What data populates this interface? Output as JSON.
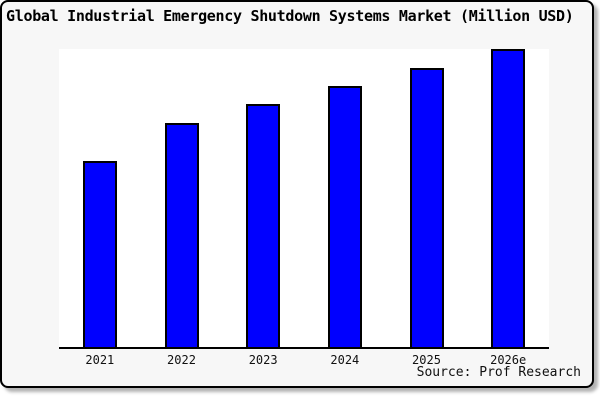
{
  "frame": {
    "background": "#f7f7f7",
    "border_color": "#000000"
  },
  "chart_data": {
    "type": "bar",
    "title": "Global Industrial Emergency Shutdown Systems Market (Million USD)",
    "categories": [
      "2021",
      "2022",
      "2023",
      "2024",
      "2025",
      "2026e"
    ],
    "values": [
      62.5,
      75.0,
      81.5,
      87.5,
      93.5,
      100
    ],
    "units": "Million USD",
    "y_axis_labels_visible": false,
    "ylim": [
      0,
      100
    ],
    "grid": false,
    "legend": false,
    "bar_color": "#0000ff",
    "bar_border_color": "#000000",
    "plot_background": "#ffffff",
    "axis_color": "#000000",
    "source_note": "Source: Prof Research"
  }
}
